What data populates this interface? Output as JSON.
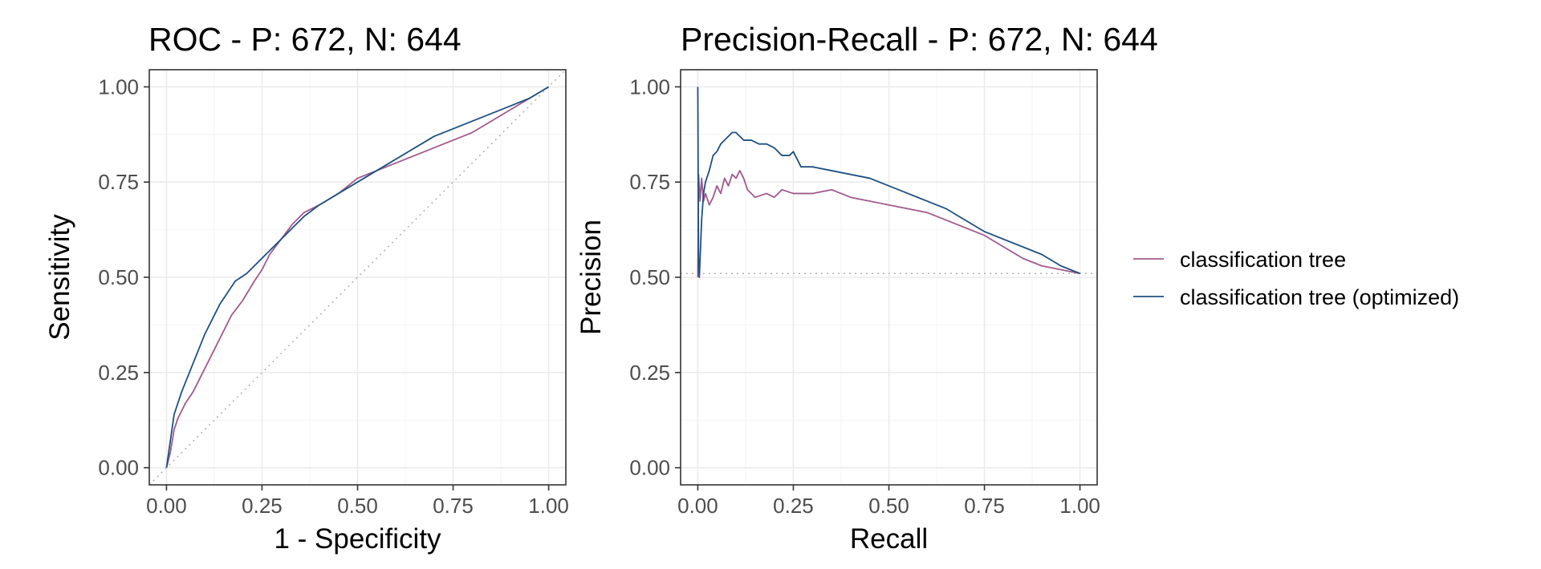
{
  "chart_data": [
    {
      "type": "line",
      "title": "ROC - P: 672, N: 644",
      "xlabel": "1 - Specificity",
      "ylabel": "Sensitivity",
      "xlim": [
        0,
        1
      ],
      "ylim": [
        0,
        1
      ],
      "x_ticks": [
        "0.00",
        "0.25",
        "0.50",
        "0.75",
        "1.00"
      ],
      "y_ticks": [
        "0.00",
        "0.25",
        "0.50",
        "0.75",
        "1.00"
      ],
      "grid": true,
      "reference_line": "diagonal",
      "series": [
        {
          "name": "classification tree",
          "color": "#a05a8c",
          "points": [
            [
              0.0,
              0.0
            ],
            [
              0.01,
              0.04
            ],
            [
              0.02,
              0.1
            ],
            [
              0.03,
              0.13
            ],
            [
              0.05,
              0.17
            ],
            [
              0.07,
              0.2
            ],
            [
              0.09,
              0.24
            ],
            [
              0.11,
              0.28
            ],
            [
              0.13,
              0.32
            ],
            [
              0.15,
              0.36
            ],
            [
              0.17,
              0.4
            ],
            [
              0.2,
              0.44
            ],
            [
              0.23,
              0.49
            ],
            [
              0.25,
              0.52
            ],
            [
              0.27,
              0.56
            ],
            [
              0.3,
              0.6
            ],
            [
              0.33,
              0.64
            ],
            [
              0.36,
              0.67
            ],
            [
              0.4,
              0.69
            ],
            [
              0.45,
              0.72
            ],
            [
              0.5,
              0.76
            ],
            [
              0.55,
              0.78
            ],
            [
              0.6,
              0.8
            ],
            [
              0.65,
              0.82
            ],
            [
              0.7,
              0.84
            ],
            [
              0.75,
              0.86
            ],
            [
              0.8,
              0.88
            ],
            [
              0.85,
              0.91
            ],
            [
              0.9,
              0.94
            ],
            [
              0.95,
              0.97
            ],
            [
              1.0,
              1.0
            ]
          ]
        },
        {
          "name": "classification tree (optimized)",
          "color": "#1f5082",
          "points": [
            [
              0.0,
              0.0
            ],
            [
              0.01,
              0.07
            ],
            [
              0.02,
              0.14
            ],
            [
              0.04,
              0.2
            ],
            [
              0.06,
              0.25
            ],
            [
              0.08,
              0.3
            ],
            [
              0.1,
              0.35
            ],
            [
              0.12,
              0.39
            ],
            [
              0.14,
              0.43
            ],
            [
              0.16,
              0.46
            ],
            [
              0.18,
              0.49
            ],
            [
              0.21,
              0.51
            ],
            [
              0.24,
              0.54
            ],
            [
              0.27,
              0.57
            ],
            [
              0.3,
              0.6
            ],
            [
              0.33,
              0.63
            ],
            [
              0.36,
              0.66
            ],
            [
              0.4,
              0.69
            ],
            [
              0.45,
              0.72
            ],
            [
              0.5,
              0.75
            ],
            [
              0.55,
              0.78
            ],
            [
              0.6,
              0.81
            ],
            [
              0.65,
              0.84
            ],
            [
              0.7,
              0.87
            ],
            [
              0.75,
              0.89
            ],
            [
              0.8,
              0.91
            ],
            [
              0.85,
              0.93
            ],
            [
              0.9,
              0.95
            ],
            [
              0.95,
              0.97
            ],
            [
              1.0,
              1.0
            ]
          ]
        }
      ]
    },
    {
      "type": "line",
      "title": "Precision-Recall - P: 672, N: 644",
      "xlabel": "Recall",
      "ylabel": "Precision",
      "xlim": [
        0,
        1
      ],
      "ylim": [
        0,
        1
      ],
      "x_ticks": [
        "0.00",
        "0.25",
        "0.50",
        "0.75",
        "1.00"
      ],
      "y_ticks": [
        "0.00",
        "0.25",
        "0.50",
        "0.75",
        "1.00"
      ],
      "grid": true,
      "reference_line": "horizontal at 0.51",
      "baseline": 0.51,
      "series": [
        {
          "name": "classification tree",
          "color": "#a05a8c",
          "points": [
            [
              0.0,
              0.5
            ],
            [
              0.002,
              0.77
            ],
            [
              0.006,
              0.7
            ],
            [
              0.01,
              0.76
            ],
            [
              0.015,
              0.7
            ],
            [
              0.02,
              0.72
            ],
            [
              0.03,
              0.69
            ],
            [
              0.04,
              0.71
            ],
            [
              0.05,
              0.74
            ],
            [
              0.06,
              0.72
            ],
            [
              0.07,
              0.76
            ],
            [
              0.08,
              0.74
            ],
            [
              0.09,
              0.77
            ],
            [
              0.1,
              0.76
            ],
            [
              0.11,
              0.78
            ],
            [
              0.12,
              0.76
            ],
            [
              0.13,
              0.73
            ],
            [
              0.15,
              0.71
            ],
            [
              0.18,
              0.72
            ],
            [
              0.2,
              0.71
            ],
            [
              0.22,
              0.73
            ],
            [
              0.25,
              0.72
            ],
            [
              0.3,
              0.72
            ],
            [
              0.35,
              0.73
            ],
            [
              0.4,
              0.71
            ],
            [
              0.45,
              0.7
            ],
            [
              0.5,
              0.69
            ],
            [
              0.55,
              0.68
            ],
            [
              0.6,
              0.67
            ],
            [
              0.65,
              0.65
            ],
            [
              0.7,
              0.63
            ],
            [
              0.75,
              0.61
            ],
            [
              0.8,
              0.58
            ],
            [
              0.85,
              0.55
            ],
            [
              0.9,
              0.53
            ],
            [
              0.95,
              0.52
            ],
            [
              1.0,
              0.51
            ]
          ]
        },
        {
          "name": "classification tree (optimized)",
          "color": "#1f5082",
          "points": [
            [
              0.0,
              1.0
            ],
            [
              0.002,
              0.52
            ],
            [
              0.004,
              0.5
            ],
            [
              0.01,
              0.65
            ],
            [
              0.015,
              0.72
            ],
            [
              0.02,
              0.75
            ],
            [
              0.03,
              0.78
            ],
            [
              0.04,
              0.82
            ],
            [
              0.05,
              0.83
            ],
            [
              0.06,
              0.85
            ],
            [
              0.07,
              0.86
            ],
            [
              0.08,
              0.87
            ],
            [
              0.09,
              0.88
            ],
            [
              0.1,
              0.88
            ],
            [
              0.11,
              0.87
            ],
            [
              0.12,
              0.86
            ],
            [
              0.14,
              0.86
            ],
            [
              0.16,
              0.85
            ],
            [
              0.18,
              0.85
            ],
            [
              0.2,
              0.84
            ],
            [
              0.22,
              0.82
            ],
            [
              0.24,
              0.82
            ],
            [
              0.25,
              0.83
            ],
            [
              0.27,
              0.79
            ],
            [
              0.3,
              0.79
            ],
            [
              0.35,
              0.78
            ],
            [
              0.4,
              0.77
            ],
            [
              0.45,
              0.76
            ],
            [
              0.5,
              0.74
            ],
            [
              0.55,
              0.72
            ],
            [
              0.6,
              0.7
            ],
            [
              0.65,
              0.68
            ],
            [
              0.7,
              0.65
            ],
            [
              0.75,
              0.62
            ],
            [
              0.8,
              0.6
            ],
            [
              0.85,
              0.58
            ],
            [
              0.9,
              0.56
            ],
            [
              0.95,
              0.53
            ],
            [
              1.0,
              0.51
            ]
          ]
        }
      ]
    }
  ],
  "legend": {
    "placement": "right",
    "entries": [
      {
        "label": "classification tree",
        "color": "#a05a8c"
      },
      {
        "label": "classification tree (optimized)",
        "color": "#1f5082"
      }
    ]
  }
}
